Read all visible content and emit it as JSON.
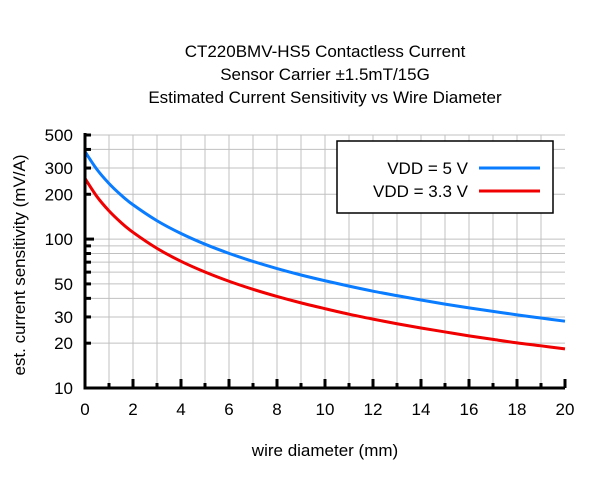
{
  "chart_data": {
    "type": "line",
    "title": [
      "CT220BMV-HS5 Contactless Current",
      "Sensor Carrier ±1.5mT/15G",
      "Estimated Current Sensitivity vs Wire Diameter"
    ],
    "xlabel": "wire diameter (mm)",
    "ylabel": "est. current sensitivity (mV/A)",
    "xlim": [
      0,
      20
    ],
    "ylim": [
      10,
      500
    ],
    "yscale": "log",
    "xticks": [
      0,
      2,
      4,
      6,
      8,
      10,
      12,
      14,
      16,
      18,
      20
    ],
    "yticks": [
      10,
      20,
      30,
      50,
      100,
      200,
      300,
      500
    ],
    "grid": true,
    "legend_position": "top-right",
    "x": [
      0,
      0.5,
      1,
      1.5,
      2,
      3,
      4,
      5,
      6,
      7,
      8,
      9,
      10,
      11,
      12,
      13,
      14,
      15,
      16,
      17,
      18,
      19,
      20
    ],
    "series": [
      {
        "name": "VDD = 5 V",
        "color": "#0a7cff",
        "values": [
          386.6,
          293.2,
          236.2,
          197.7,
          170.0,
          132.8,
          109.0,
          92.4,
          80.2,
          70.8,
          63.4,
          57.4,
          52.5,
          48.3,
          44.7,
          41.7,
          39.0,
          36.6,
          34.5,
          32.7,
          31.0,
          29.5,
          28.1
        ]
      },
      {
        "name": "VDD = 3.3 V",
        "color": "#f00000",
        "values": [
          255.2,
          192.6,
          154.7,
          129.3,
          111.0,
          86.6,
          70.9,
          60.1,
          52.1,
          46.0,
          41.2,
          37.3,
          34.1,
          31.3,
          29.0,
          27.0,
          25.3,
          23.8,
          22.4,
          21.2,
          20.1,
          19.2,
          18.3
        ]
      }
    ]
  }
}
